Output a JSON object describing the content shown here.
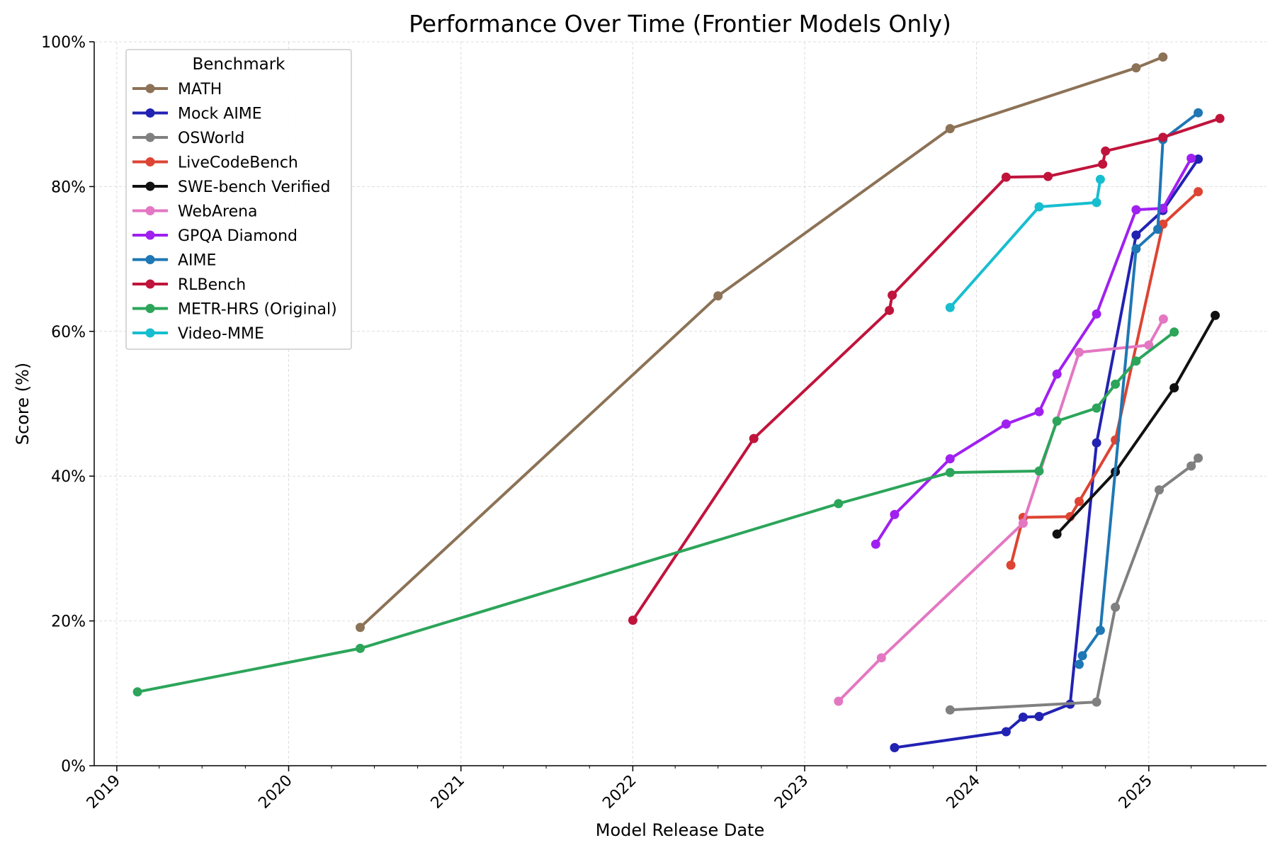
{
  "chart_data": {
    "type": "line",
    "title": "Performance Over Time (Frontier Models Only)",
    "xlabel": "Model Release Date",
    "ylabel": "Score (%)",
    "xlim": [
      "2018-11-14",
      "2025-09-08"
    ],
    "ylim": [
      0,
      100
    ],
    "x_ticks": [
      "2019",
      "2020",
      "2021",
      "2022",
      "2023",
      "2024",
      "2025"
    ],
    "y_ticks": [
      "0%",
      "20%",
      "40%",
      "60%",
      "80%",
      "100%"
    ],
    "grid": true,
    "legend": {
      "title": "Benchmark",
      "position": "top-left"
    },
    "series": [
      {
        "name": "MATH",
        "color": "#8c7256",
        "points": [
          [
            "2020-06-01",
            19.1
          ],
          [
            "2022-07-01",
            64.9
          ],
          [
            "2023-11-06",
            88.0
          ],
          [
            "2024-12-05",
            96.4
          ],
          [
            "2025-01-31",
            97.9
          ]
        ]
      },
      {
        "name": "Mock AIME",
        "color": "#2222b3",
        "points": [
          [
            "2023-07-11",
            2.5
          ],
          [
            "2024-03-04",
            4.7
          ],
          [
            "2024-04-09",
            6.7
          ],
          [
            "2024-05-13",
            6.8
          ],
          [
            "2024-07-18",
            8.5
          ],
          [
            "2024-09-12",
            44.6
          ],
          [
            "2024-12-05",
            73.3
          ],
          [
            "2025-01-31",
            76.7
          ],
          [
            "2025-04-16",
            83.8
          ]
        ]
      },
      {
        "name": "OSWorld",
        "color": "#808080",
        "points": [
          [
            "2023-11-06",
            7.7
          ],
          [
            "2024-09-12",
            8.8
          ],
          [
            "2024-10-22",
            21.9
          ],
          [
            "2025-01-23",
            38.1
          ],
          [
            "2025-04-01",
            41.4
          ],
          [
            "2025-04-16",
            42.5
          ]
        ]
      },
      {
        "name": "LiveCodeBench",
        "color": "#dd4433",
        "points": [
          [
            "2024-03-14",
            27.7
          ],
          [
            "2024-04-09",
            34.3
          ],
          [
            "2024-07-18",
            34.4
          ],
          [
            "2024-08-06",
            36.5
          ],
          [
            "2024-10-22",
            45.0
          ],
          [
            "2025-01-31",
            74.8
          ],
          [
            "2025-04-16",
            79.3
          ]
        ]
      },
      {
        "name": "SWE-bench Verified",
        "color": "#111111",
        "points": [
          [
            "2024-06-20",
            32.0
          ],
          [
            "2024-10-22",
            40.6
          ],
          [
            "2025-02-24",
            52.2
          ],
          [
            "2025-05-22",
            62.2
          ]
        ]
      },
      {
        "name": "WebArena",
        "color": "#e377c2",
        "points": [
          [
            "2023-03-14",
            8.9
          ],
          [
            "2023-06-13",
            14.9
          ],
          [
            "2024-04-09",
            33.5
          ],
          [
            "2024-08-06",
            57.1
          ],
          [
            "2025-01-01",
            58.1
          ],
          [
            "2025-02-01",
            61.7
          ]
        ]
      },
      {
        "name": "GPQA Diamond",
        "color": "#a020f0",
        "points": [
          [
            "2023-06-01",
            30.6
          ],
          [
            "2023-07-11",
            34.7
          ],
          [
            "2023-11-06",
            42.4
          ],
          [
            "2024-03-04",
            47.2
          ],
          [
            "2024-05-13",
            48.9
          ],
          [
            "2024-06-20",
            54.1
          ],
          [
            "2024-09-12",
            62.4
          ],
          [
            "2024-12-05",
            76.8
          ],
          [
            "2025-01-31",
            77.0
          ],
          [
            "2025-04-01",
            83.9
          ]
        ]
      },
      {
        "name": "AIME",
        "color": "#1f77b4",
        "points": [
          [
            "2024-08-06",
            14.0
          ],
          [
            "2024-08-13",
            15.2
          ],
          [
            "2024-09-20",
            18.7
          ],
          [
            "2024-12-05",
            71.4
          ],
          [
            "2025-01-20",
            74.1
          ],
          [
            "2025-01-31",
            86.5
          ],
          [
            "2025-04-16",
            90.2
          ]
        ]
      },
      {
        "name": "RLBench",
        "color": "#c0143c",
        "points": [
          [
            "2022-01-01",
            20.1
          ],
          [
            "2022-09-15",
            45.2
          ],
          [
            "2023-06-30",
            62.9
          ],
          [
            "2023-07-06",
            65.0
          ],
          [
            "2024-03-04",
            81.3
          ],
          [
            "2024-06-01",
            81.4
          ],
          [
            "2024-09-25",
            83.1
          ],
          [
            "2024-10-01",
            84.9
          ],
          [
            "2025-01-31",
            86.8
          ],
          [
            "2025-06-01",
            89.4
          ]
        ]
      },
      {
        "name": "METR-HRS (Original)",
        "color": "#2ca55a",
        "points": [
          [
            "2019-02-14",
            10.2
          ],
          [
            "2020-06-01",
            16.2
          ],
          [
            "2023-03-14",
            36.2
          ],
          [
            "2023-11-06",
            40.5
          ],
          [
            "2024-05-13",
            40.7
          ],
          [
            "2024-06-20",
            47.6
          ],
          [
            "2024-09-12",
            49.4
          ],
          [
            "2024-10-22",
            52.7
          ],
          [
            "2024-12-05",
            55.9
          ],
          [
            "2025-02-24",
            59.9
          ]
        ]
      },
      {
        "name": "Video-MME",
        "color": "#17becf",
        "points": [
          [
            "2023-11-06",
            63.3
          ],
          [
            "2024-05-13",
            77.2
          ],
          [
            "2024-09-12",
            77.8
          ],
          [
            "2024-09-20",
            81.0
          ]
        ]
      }
    ]
  }
}
